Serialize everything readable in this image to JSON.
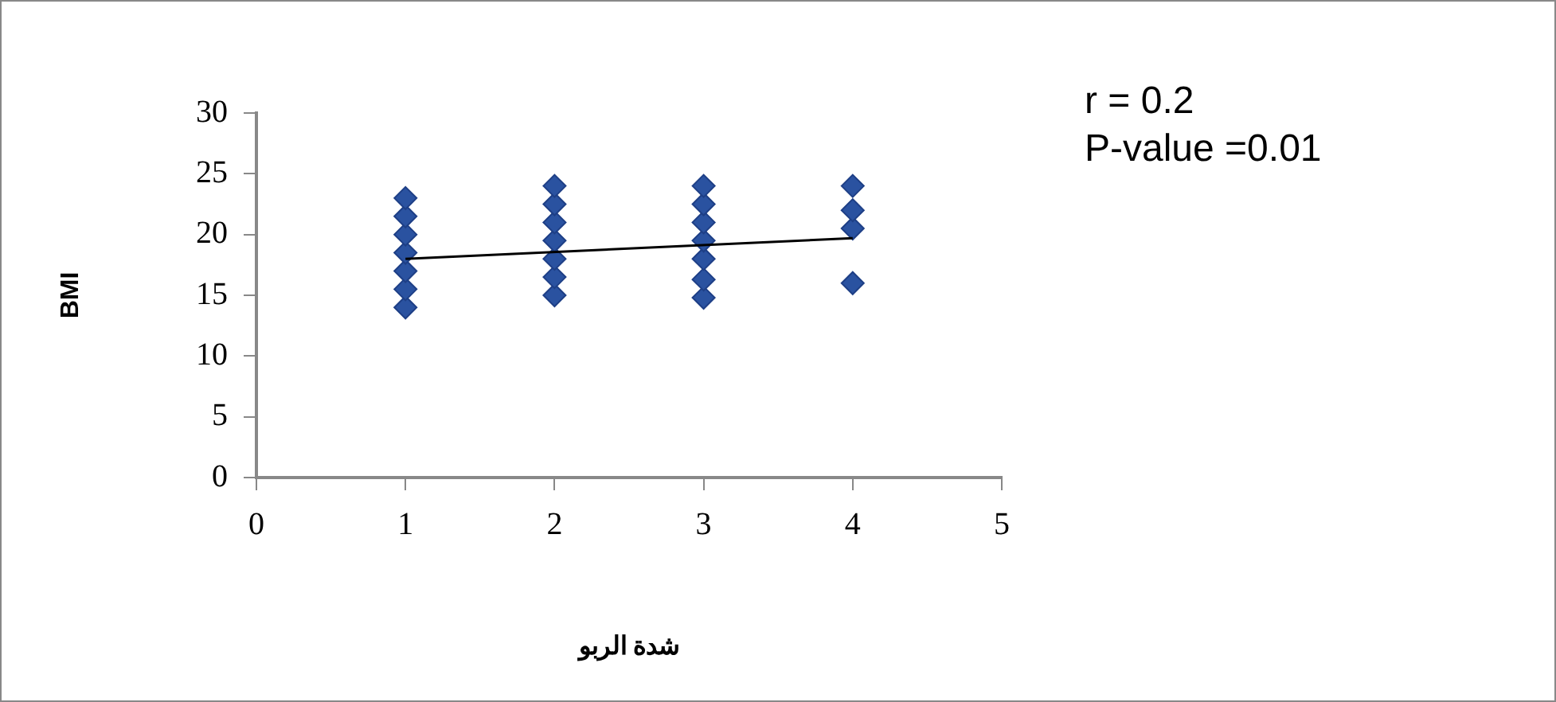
{
  "chart_data": {
    "type": "scatter",
    "xlabel": "شدة الربو",
    "ylabel": "BMI",
    "annotations": [
      "r = 0.2",
      "P-value =0.01"
    ],
    "xlim": [
      0,
      5
    ],
    "xticks": [
      0,
      1,
      2,
      3,
      4,
      5
    ],
    "ylim": [
      0,
      30
    ],
    "yticks": [
      0,
      5,
      10,
      15,
      20,
      25,
      30
    ],
    "grid": false,
    "legend": false,
    "marker": "diamond",
    "series": [
      {
        "color": "#2a52a0",
        "x": [
          1,
          1,
          1,
          1,
          1,
          1,
          1,
          2,
          2,
          2,
          2,
          2,
          2,
          2,
          3,
          3,
          3,
          3,
          3,
          3,
          3,
          4,
          4,
          4,
          4
        ],
        "values": [
          14,
          15.5,
          17,
          18.5,
          20,
          21.5,
          23,
          15,
          16.5,
          18,
          19.5,
          21,
          22.5,
          24,
          14.8,
          16.3,
          18,
          19.5,
          21,
          22.5,
          24,
          16,
          20.5,
          22,
          24
        ]
      },
      {
        "type": "line",
        "color": "#000000",
        "marker": "none",
        "x": [
          1,
          4
        ],
        "values": [
          18,
          19.7
        ]
      }
    ]
  }
}
